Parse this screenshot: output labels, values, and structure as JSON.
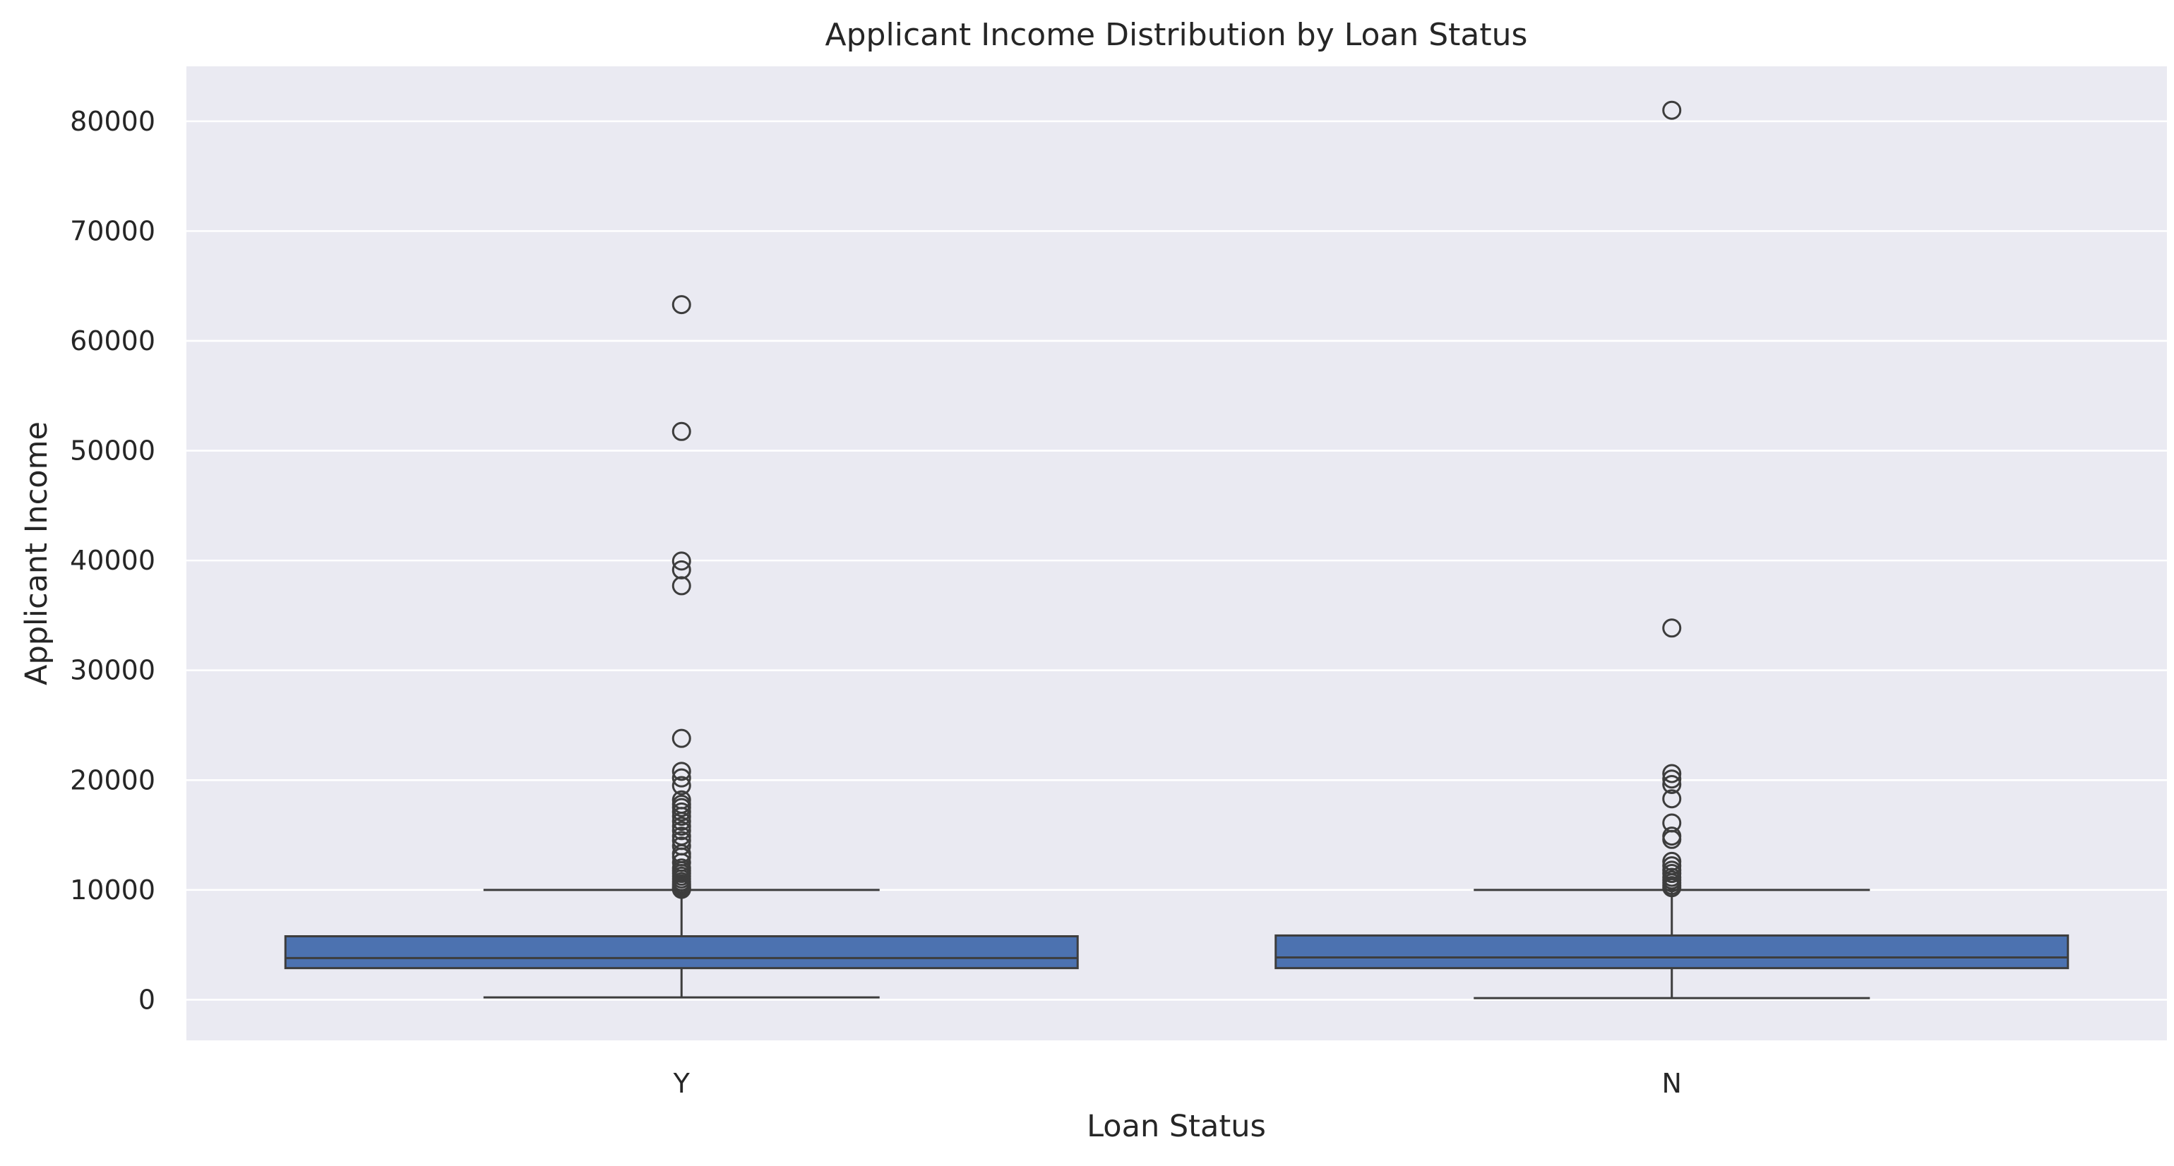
{
  "chart_data": {
    "type": "box",
    "title": "Applicant Income Distribution by Loan Status",
    "xlabel": "Loan Status",
    "ylabel": "Applicant Income",
    "ylim": [
      -3700,
      85000
    ],
    "yticks": [
      0,
      10000,
      20000,
      30000,
      40000,
      50000,
      60000,
      70000,
      80000
    ],
    "grid": true,
    "colors": {
      "background": "#EAEAF2",
      "grid": "#FFFFFF",
      "box_fill": "#4C72B0",
      "line": "#3D3D3D",
      "text": "#262626"
    },
    "categories": [
      "Y",
      "N"
    ],
    "boxes": [
      {
        "category": "Y",
        "whisker_low": 210,
        "q1": 2880,
        "median": 3800,
        "q3": 5780,
        "whisker_high": 10000,
        "outliers": [
          10050,
          10150,
          10250,
          10400,
          10550,
          10750,
          11000,
          11250,
          11500,
          11750,
          12000,
          12500,
          13000,
          13300,
          14000,
          14500,
          14900,
          15400,
          15800,
          16250,
          16700,
          17100,
          17500,
          17800,
          18200,
          19500,
          20200,
          20800,
          23800,
          37700,
          39150,
          39950,
          51750,
          63300
        ]
      },
      {
        "category": "N",
        "whisker_low": 150,
        "q1": 2880,
        "median": 3850,
        "q3": 5850,
        "whisker_high": 10000,
        "outliers": [
          10200,
          10400,
          10650,
          10900,
          11150,
          11500,
          11800,
          12200,
          12600,
          14600,
          14900,
          16100,
          18300,
          19600,
          20100,
          20600,
          33850,
          81000
        ]
      }
    ]
  }
}
